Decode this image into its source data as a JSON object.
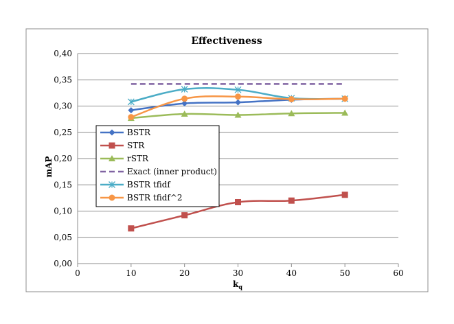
{
  "chart_data": {
    "type": "line",
    "title": "Effectiveness",
    "xlabel": "k",
    "xlabel_sub": "q",
    "ylabel": "mAP",
    "xlim": [
      0,
      60
    ],
    "ylim": [
      0,
      0.4
    ],
    "xticks": [
      0,
      10,
      20,
      30,
      40,
      50,
      60
    ],
    "xtick_labels": [
      "0",
      "10",
      "20",
      "30",
      "40",
      "50",
      "60"
    ],
    "yticks": [
      0,
      0.05,
      0.1,
      0.15,
      0.2,
      0.25,
      0.3,
      0.35,
      0.4
    ],
    "ytick_labels": [
      "0,00",
      "0,05",
      "0,10",
      "0,15",
      "0,20",
      "0,25",
      "0,30",
      "0,35",
      "0,40"
    ],
    "grid": "horizontal",
    "legend_position": "center-left",
    "x": [
      10,
      20,
      30,
      40,
      50
    ],
    "series": [
      {
        "name": "BSTR",
        "color": "#4472C4",
        "marker": "diamond",
        "dash": false,
        "values": [
          0.292,
          0.305,
          0.307,
          0.312,
          0.314
        ]
      },
      {
        "name": "STR",
        "color": "#C0504D",
        "marker": "square",
        "dash": false,
        "values": [
          0.067,
          0.092,
          0.117,
          0.12,
          0.131
        ]
      },
      {
        "name": "rSTR",
        "color": "#9BBB59",
        "marker": "triangle",
        "dash": false,
        "values": [
          0.277,
          0.285,
          0.283,
          0.286,
          0.287
        ]
      },
      {
        "name": "Exact (inner product)",
        "color": "#8064A2",
        "marker": "none",
        "dash": true,
        "values": [
          0.342,
          0.342,
          0.342,
          0.342,
          0.342
        ]
      },
      {
        "name": "BSTR tfidf",
        "color": "#4BACC6",
        "marker": "star",
        "dash": false,
        "values": [
          0.308,
          0.332,
          0.331,
          0.315,
          0.314
        ]
      },
      {
        "name": "BSTR tfidf^2",
        "color": "#F79646",
        "marker": "circle",
        "dash": false,
        "values": [
          0.279,
          0.314,
          0.318,
          0.313,
          0.314
        ]
      }
    ]
  }
}
